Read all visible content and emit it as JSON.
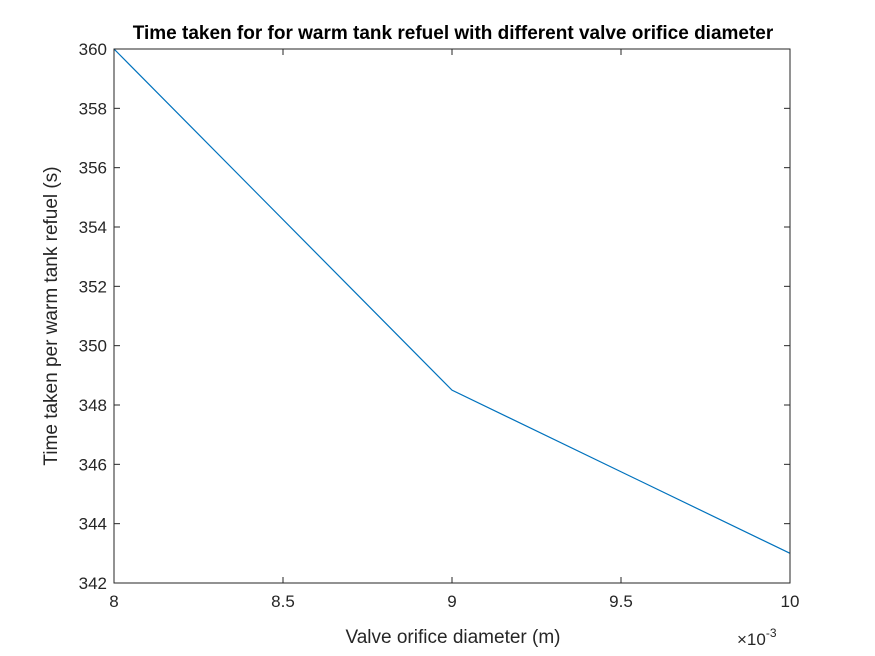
{
  "chart_data": {
    "type": "line",
    "title": "Time taken for for warm tank refuel with different valve orifice diameter",
    "xlabel": "Valve orifice diameter (m)",
    "ylabel": "Time taken per warm tank refuel (s)",
    "x_exponent_label": "×10",
    "x_exponent_power": "-3",
    "xlim": [
      0.008,
      0.01
    ],
    "ylim": [
      342,
      360
    ],
    "x_tick_values": [
      0.008,
      0.0085,
      0.009,
      0.0095,
      0.01
    ],
    "x_tick_labels": [
      "8",
      "8.5",
      "9",
      "9.5",
      "10"
    ],
    "y_tick_values": [
      342,
      344,
      346,
      348,
      350,
      352,
      354,
      356,
      358,
      360
    ],
    "y_tick_labels": [
      "342",
      "344",
      "346",
      "348",
      "350",
      "352",
      "354",
      "356",
      "358",
      "360"
    ],
    "grid": false,
    "series": [
      {
        "x": [
          0.008,
          0.009,
          0.01
        ],
        "y": [
          360,
          348.5,
          343
        ],
        "color": "#0072BD"
      }
    ]
  }
}
